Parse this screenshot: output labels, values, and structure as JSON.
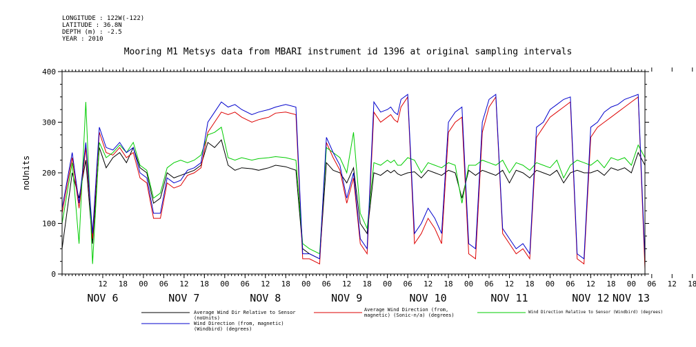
{
  "meta": {
    "longitude": "LONGITUDE : 122W(-122)",
    "latitude": "LATITUDE : 36.8N",
    "depth": "DEPTH (m) : -2.5",
    "year": "YEAR : 2010"
  },
  "chart_data": {
    "type": "line",
    "title": "Mooring M1 Metsys data from MBARI instrument id 1396 at original sampling intervals",
    "ylabel": "noUnits",
    "xlabel": "",
    "ylim": [
      0,
      400
    ],
    "xlim": [
      0,
      172
    ],
    "x_unit": "hours since NOV 5 00:00",
    "yticks": [
      0,
      100,
      200,
      300,
      400
    ],
    "hour_ticks": [
      "12",
      "18",
      "00",
      "06",
      "12",
      "18",
      "00",
      "06",
      "12",
      "18",
      "00",
      "06",
      "12",
      "18",
      "00",
      "06",
      "12",
      "18",
      "00",
      "06",
      "12",
      "18",
      "00",
      "06",
      "12",
      "18",
      "00",
      "06",
      "12",
      "18",
      "00",
      "06"
    ],
    "day_labels": [
      "NOV  6",
      "NOV  7",
      "NOV  8",
      "NOV  9",
      "NOV 10",
      "NOV 11",
      "NOV 12",
      "NOV 13"
    ],
    "grid": false,
    "legend_position": "bottom",
    "series": [
      {
        "name": "Average Wind Dir Relative to Sensor (noUnits)",
        "color": "#000000",
        "x": [
          0,
          3,
          5,
          7,
          9,
          11,
          13,
          15,
          17,
          19,
          21,
          23,
          25,
          27,
          29,
          31,
          33,
          35,
          37,
          39,
          41,
          43,
          45,
          47,
          49,
          51,
          53,
          56,
          58,
          61,
          63,
          66,
          69,
          71,
          73,
          76,
          78,
          80,
          82,
          84,
          86,
          88,
          90,
          92,
          94,
          96,
          97,
          98,
          99,
          100,
          102,
          104,
          106,
          108,
          110,
          112,
          114,
          116,
          118,
          120,
          122,
          124,
          126,
          128,
          130,
          132,
          134,
          136,
          138,
          140,
          142,
          144,
          146,
          148,
          150,
          152,
          154,
          156,
          158,
          160,
          162,
          164,
          166,
          168,
          170,
          172
        ],
        "y": [
          50,
          200,
          150,
          225,
          60,
          250,
          210,
          230,
          240,
          220,
          250,
          210,
          200,
          140,
          150,
          200,
          190,
          195,
          200,
          205,
          215,
          260,
          250,
          265,
          215,
          205,
          210,
          208,
          205,
          210,
          215,
          212,
          205,
          50,
          40,
          30,
          220,
          205,
          200,
          180,
          210,
          100,
          80,
          200,
          195,
          205,
          200,
          205,
          198,
          195,
          200,
          202,
          190,
          205,
          200,
          195,
          205,
          200,
          150,
          205,
          195,
          205,
          200,
          195,
          205,
          180,
          205,
          200,
          190,
          205,
          200,
          195,
          205,
          180,
          200,
          205,
          200,
          200,
          205,
          195,
          210,
          205,
          210,
          200,
          240,
          215
        ]
      },
      {
        "name": "Average Wind Direction (from, magnetic) (Sonic-n/a) (degrees)",
        "color": "#dd0000",
        "x": [
          0,
          3,
          5,
          7,
          9,
          11,
          13,
          15,
          17,
          19,
          21,
          23,
          25,
          27,
          29,
          31,
          33,
          35,
          37,
          39,
          41,
          43,
          45,
          47,
          49,
          51,
          53,
          56,
          58,
          61,
          63,
          66,
          69,
          71,
          73,
          76,
          78,
          80,
          82,
          84,
          86,
          88,
          90,
          92,
          94,
          96,
          97,
          98,
          99,
          100,
          102,
          104,
          106,
          108,
          110,
          112,
          114,
          116,
          118,
          120,
          122,
          124,
          126,
          128,
          130,
          132,
          134,
          136,
          138,
          140,
          142,
          144,
          146,
          148,
          150,
          152,
          154,
          156,
          158,
          160,
          162,
          164,
          166,
          168,
          170,
          172
        ],
        "y": [
          120,
          230,
          130,
          250,
          70,
          280,
          240,
          235,
          250,
          230,
          240,
          190,
          180,
          110,
          110,
          180,
          170,
          175,
          195,
          200,
          210,
          280,
          300,
          320,
          315,
          320,
          310,
          300,
          305,
          310,
          318,
          320,
          315,
          30,
          30,
          20,
          260,
          230,
          205,
          140,
          190,
          60,
          40,
          320,
          300,
          310,
          315,
          305,
          300,
          330,
          350,
          60,
          80,
          110,
          90,
          60,
          280,
          300,
          310,
          40,
          30,
          280,
          330,
          350,
          80,
          60,
          40,
          50,
          30,
          270,
          290,
          310,
          320,
          330,
          340,
          30,
          20,
          270,
          290,
          300,
          310,
          320,
          330,
          340,
          350,
          10
        ]
      },
      {
        "name": "Wind Direction Relative to Sensor (Windbird) (degrees)",
        "color": "#00cc00",
        "x": [
          0,
          3,
          5,
          7,
          9,
          11,
          13,
          15,
          17,
          19,
          21,
          23,
          25,
          27,
          29,
          31,
          33,
          35,
          37,
          39,
          41,
          43,
          45,
          47,
          49,
          51,
          53,
          56,
          58,
          61,
          63,
          66,
          69,
          71,
          73,
          76,
          78,
          80,
          82,
          84,
          86,
          88,
          90,
          92,
          94,
          96,
          97,
          98,
          99,
          100,
          102,
          104,
          106,
          108,
          110,
          112,
          114,
          116,
          118,
          120,
          122,
          124,
          126,
          128,
          130,
          132,
          134,
          136,
          138,
          140,
          142,
          144,
          146,
          148,
          150,
          152,
          154,
          156,
          158,
          160,
          162,
          164,
          166,
          168,
          170,
          172
        ],
        "y": [
          100,
          220,
          60,
          340,
          20,
          260,
          230,
          240,
          255,
          240,
          260,
          215,
          205,
          150,
          160,
          210,
          220,
          225,
          220,
          225,
          235,
          275,
          280,
          290,
          230,
          225,
          230,
          225,
          228,
          230,
          232,
          230,
          225,
          60,
          50,
          40,
          250,
          240,
          230,
          200,
          280,
          120,
          90,
          220,
          215,
          225,
          220,
          225,
          215,
          215,
          230,
          225,
          200,
          220,
          215,
          210,
          220,
          215,
          140,
          215,
          215,
          225,
          220,
          215,
          225,
          200,
          220,
          215,
          205,
          220,
          215,
          210,
          225,
          190,
          215,
          225,
          220,
          215,
          225,
          210,
          230,
          225,
          230,
          215,
          255,
          230
        ]
      },
      {
        "name": "Wind Direction (from, magnetic) (Windbird) (degrees)",
        "color": "#0000cc",
        "x": [
          0,
          3,
          5,
          7,
          9,
          11,
          13,
          15,
          17,
          19,
          21,
          23,
          25,
          27,
          29,
          31,
          33,
          35,
          37,
          39,
          41,
          43,
          45,
          47,
          49,
          51,
          53,
          56,
          58,
          61,
          63,
          66,
          69,
          71,
          73,
          76,
          78,
          80,
          82,
          84,
          86,
          88,
          90,
          92,
          94,
          96,
          97,
          98,
          99,
          100,
          102,
          104,
          106,
          108,
          110,
          112,
          114,
          116,
          118,
          120,
          122,
          124,
          126,
          128,
          130,
          132,
          134,
          136,
          138,
          140,
          142,
          144,
          146,
          148,
          150,
          152,
          154,
          156,
          158,
          160,
          162,
          164,
          166,
          168,
          170,
          172
        ],
        "y": [
          130,
          240,
          140,
          260,
          80,
          290,
          250,
          245,
          260,
          240,
          250,
          200,
          190,
          120,
          120,
          190,
          180,
          185,
          205,
          210,
          220,
          300,
          320,
          340,
          330,
          335,
          325,
          315,
          320,
          325,
          330,
          335,
          330,
          40,
          40,
          30,
          270,
          240,
          215,
          150,
          200,
          70,
          50,
          340,
          320,
          325,
          330,
          320,
          315,
          345,
          355,
          80,
          100,
          130,
          110,
          80,
          300,
          320,
          330,
          60,
          50,
          300,
          345,
          355,
          90,
          70,
          50,
          60,
          40,
          290,
          300,
          325,
          335,
          345,
          350,
          40,
          30,
          290,
          300,
          320,
          330,
          335,
          345,
          350,
          355,
          30
        ]
      }
    ]
  }
}
